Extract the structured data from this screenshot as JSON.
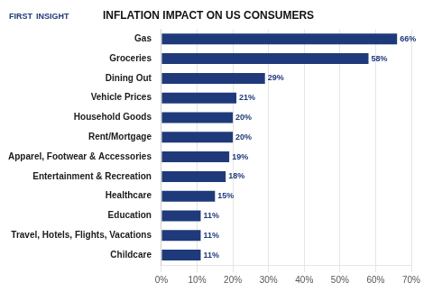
{
  "chart_data": {
    "type": "bar",
    "orientation": "horizontal",
    "title": "INFLATION IMPACT ON US CONSUMERS",
    "annotations": [
      "FIRST",
      "INSIGHT"
    ],
    "categories": [
      "Gas",
      "Groceries",
      "Dining Out",
      "Vehicle Prices",
      "Household Goods",
      "Rent/Mortgage",
      "Apparel, Footwear & Accessories",
      "Entertainment & Recreation",
      "Healthcare",
      "Education",
      "Travel, Hotels, Flights, Vacations",
      "Childcare"
    ],
    "values": [
      66,
      58,
      29,
      21,
      20,
      20,
      19,
      18,
      15,
      11,
      11,
      11
    ],
    "value_labels": [
      "66%",
      "58%",
      "29%",
      "21%",
      "20%",
      "20%",
      "19%",
      "18%",
      "15%",
      "11%",
      "11%",
      "11%"
    ],
    "data_labels": true,
    "color": "#1F3A7A",
    "xlim": [
      0,
      70
    ],
    "xticks": [
      {
        "value": 0,
        "label": "0%"
      },
      {
        "value": 10,
        "label": "10%"
      },
      {
        "value": 20,
        "label": "20%"
      },
      {
        "value": 30,
        "label": "30%"
      },
      {
        "value": 40,
        "label": "40%"
      },
      {
        "value": 50,
        "label": "50%"
      },
      {
        "value": 60,
        "label": "60%"
      },
      {
        "value": 70,
        "label": "70%"
      }
    ],
    "grid": true
  }
}
